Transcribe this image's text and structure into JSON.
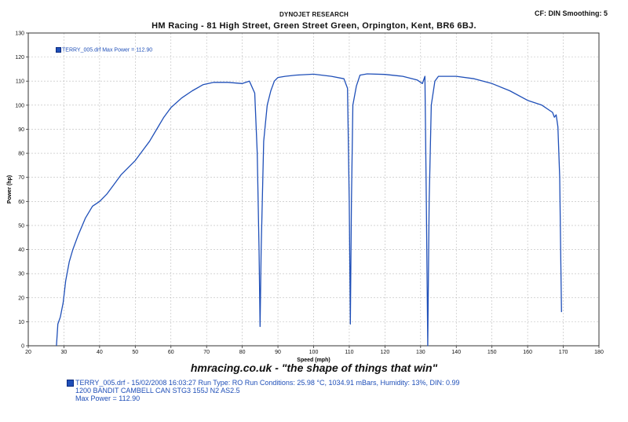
{
  "header": {
    "company": "DYNOJET RESEARCH",
    "cf_info": "CF: DIN  Smoothing: 5",
    "title": "HM Racing - 81 High Street, Green Street Green, Orpington, Kent, BR6 6BJ."
  },
  "legend": {
    "label": "TERRY_005.drf Max Power = 112.90"
  },
  "tagline": "hmracing.co.uk - \"the shape of things that win\"",
  "footer": {
    "line1": "TERRY_005.drf - 15/02/2008 16:03:27  Run Type: RO  Run Conditions: 25.98 °C, 1034.91 mBars,  Humidity:  13%, DIN: 0.99",
    "line2": "1200 BANDIT CAMBELL CAN STG3 155J N2 AS2.5",
    "line3": "Max Power = 112.90"
  },
  "chart_data": {
    "type": "line",
    "xlabel": "Speed (mph)",
    "ylabel": "Power (hp)",
    "xlim": [
      20,
      180
    ],
    "ylim": [
      0,
      130
    ],
    "xticks": [
      20,
      30,
      40,
      50,
      60,
      70,
      80,
      90,
      100,
      110,
      120,
      130,
      140,
      150,
      160,
      170,
      180
    ],
    "yticks": [
      0,
      10,
      20,
      30,
      40,
      50,
      60,
      70,
      80,
      90,
      100,
      110,
      120,
      130
    ],
    "grid": true,
    "legend_position": "top-left",
    "colors": {
      "line": "#1f4fb8",
      "grid": "#bbbbbb",
      "axis": "#333333"
    },
    "series": [
      {
        "name": "TERRY_005.drf",
        "x": [
          27.9,
          28.3,
          29.0,
          29.8,
          30.5,
          31.5,
          32.5,
          34.0,
          36.0,
          38.0,
          40.0,
          42.0,
          44.0,
          46.0,
          48.0,
          50.0,
          52.0,
          54.0,
          56.0,
          58.0,
          60.0,
          63.0,
          66.0,
          69.0,
          72.0,
          76.0,
          80.0,
          82.0,
          83.5,
          84.2,
          84.7,
          85.0,
          85.3,
          86.0,
          87.0,
          88.0,
          89.0,
          90.0,
          92.0,
          95.0,
          100.0,
          105.0,
          108.5,
          109.5,
          110.0,
          110.3,
          110.6,
          111.0,
          112.0,
          113.0,
          115.0,
          120.0,
          125.0,
          129.0,
          130.5,
          131.2,
          131.6,
          132.0,
          132.4,
          133.0,
          134.0,
          135.0,
          140.0,
          145.0,
          150.0,
          155.0,
          160.0,
          164.0,
          166.0,
          167.0,
          167.5,
          168.0,
          168.5,
          169.0,
          169.3,
          169.5
        ],
        "values": [
          0,
          9,
          12,
          18,
          27,
          35,
          40,
          46,
          53,
          58,
          60,
          63,
          67,
          71,
          74,
          77,
          81,
          85,
          90,
          95,
          99,
          103,
          106,
          108.5,
          109.5,
          109.5,
          109,
          110,
          105,
          80,
          40,
          8,
          40,
          85,
          100,
          106,
          110,
          111.5,
          112,
          112.5,
          112.9,
          112,
          111,
          107,
          60,
          9,
          60,
          100,
          108,
          112.5,
          113,
          112.8,
          112,
          110.5,
          109,
          112,
          60,
          0,
          60,
          100,
          110,
          112,
          112,
          111,
          109,
          106,
          102,
          100,
          98,
          97,
          95,
          96,
          91,
          70,
          35,
          14
        ]
      }
    ]
  }
}
